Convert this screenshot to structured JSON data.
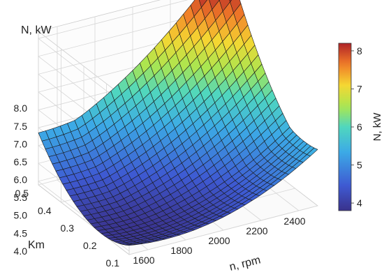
{
  "chart_data": {
    "type": "surface3d",
    "title": "",
    "x": {
      "label": "n, rpm",
      "range": [
        1500,
        2500
      ],
      "ticks": [
        1600,
        1800,
        2000,
        2200,
        2400
      ],
      "tick_labels": [
        "1600",
        "1800",
        "2000",
        "2200",
        "2400"
      ]
    },
    "y": {
      "label": "Km",
      "range": [
        0.1,
        0.5
      ],
      "ticks": [
        0.1,
        0.2,
        0.3,
        0.4,
        0.5
      ],
      "tick_labels": [
        "0.1",
        "0.2",
        "0.3",
        "0.4",
        "0.5"
      ]
    },
    "z": {
      "label": "N, kW",
      "range": [
        3.9,
        8.2
      ],
      "ticks": [
        4.0,
        4.5,
        5.0,
        5.5,
        6.0,
        6.5,
        7.0,
        7.5,
        8.0
      ],
      "tick_labels": [
        "4.0",
        "4.5",
        "5.0",
        "5.5",
        "6.0",
        "6.5",
        "7.0",
        "7.5",
        "8.0"
      ]
    },
    "surface_samples": [
      {
        "n": 1500,
        "Km": 0.1,
        "N": 4.6
      },
      {
        "n": 1500,
        "Km": 0.5,
        "N": 5.0
      },
      {
        "n": 2500,
        "Km": 0.1,
        "N": 5.5
      },
      {
        "n": 2500,
        "Km": 0.5,
        "N": 8.2
      },
      {
        "n": 1700,
        "Km": 0.22,
        "N": 3.8
      }
    ],
    "colorbar": {
      "label": "N, kW",
      "range": [
        3.8,
        8.2
      ],
      "ticks": [
        4,
        5,
        6,
        7,
        8
      ],
      "tick_labels": [
        "4",
        "5",
        "6",
        "7",
        "8"
      ],
      "colormap": "jet"
    },
    "grid": true
  }
}
